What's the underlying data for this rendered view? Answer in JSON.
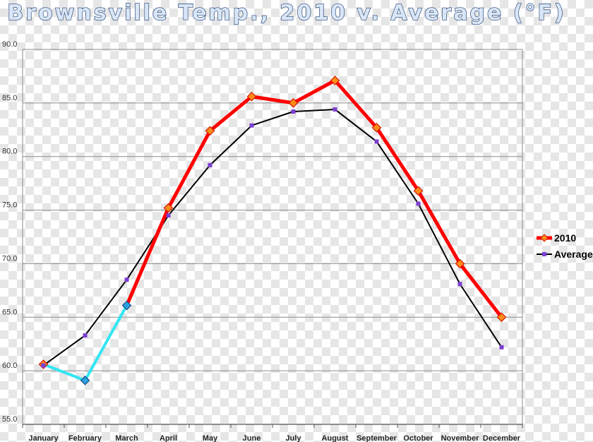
{
  "chart_data": {
    "type": "line",
    "title": "Brownsville Temp., 2010 v. Average (°F)",
    "xlabel": "",
    "ylabel": "",
    "categories": [
      "January",
      "February",
      "March",
      "April",
      "May",
      "June",
      "July",
      "August",
      "September",
      "October",
      "November",
      "December"
    ],
    "ylim": [
      55,
      90
    ],
    "yticks": [
      "55.0",
      "60.0",
      "65.0",
      "70.0",
      "75.0",
      "80.0",
      "85.0",
      "90.0"
    ],
    "grid": true,
    "legend": "right",
    "series": [
      {
        "name": "2010",
        "color": "#ff0000",
        "marker_color": "#ff8c1a",
        "values": [
          60.6,
          59.1,
          66.1,
          75.2,
          82.4,
          85.6,
          85.0,
          87.1,
          82.7,
          76.8,
          70.0,
          65.0
        ],
        "highlight": {
          "range": [
            0,
            2
          ],
          "color": "#33e6f2",
          "marker_color": "#29a3e0"
        }
      },
      {
        "name": "Average",
        "color": "#000000",
        "marker_color": "#7b3fd0",
        "values": [
          60.5,
          63.3,
          68.5,
          74.5,
          79.2,
          82.9,
          84.2,
          84.4,
          81.4,
          75.6,
          68.1,
          62.2
        ]
      }
    ]
  }
}
